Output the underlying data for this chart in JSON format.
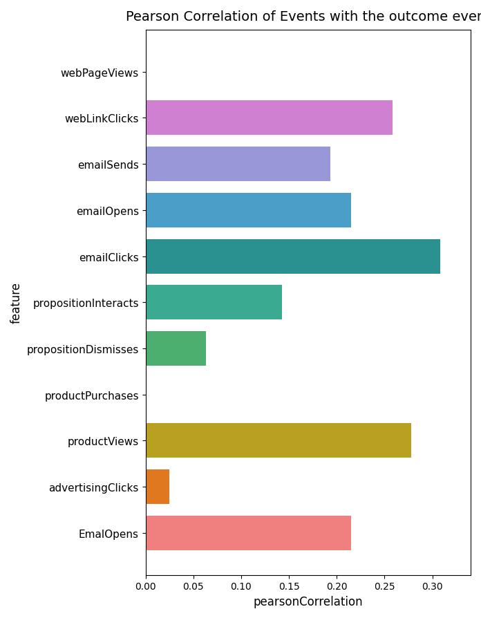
{
  "title": "Pearson Correlation of Events with the outcome event",
  "xlabel": "pearsonCorrelation",
  "ylabel": "feature",
  "categories": [
    "EmalOpens",
    "advertisingClicks",
    "productViews",
    "productPurchases",
    "propositionDismisses",
    "propositionInteracts",
    "emailClicks",
    "emailOpens",
    "emailSends",
    "webLinkClicks",
    "webPageViews"
  ],
  "values": [
    0.215,
    0.025,
    0.278,
    0.001,
    0.063,
    0.143,
    0.308,
    0.215,
    0.193,
    0.258,
    0.001
  ],
  "colors": [
    "#f08080",
    "#e07820",
    "#b8a020",
    "#ffffff",
    "#4caf70",
    "#3aaa90",
    "#2a9090",
    "#4a9ec8",
    "#9898d8",
    "#d080d0",
    "#ffffff"
  ],
  "xlim": [
    0,
    0.34
  ],
  "background_color": "#ffffff",
  "title_fontsize": 14,
  "label_fontsize": 11,
  "axis_fontsize": 12,
  "figsize": [
    6.96,
    8.95
  ],
  "dpi": 100,
  "bar_height": 0.75
}
